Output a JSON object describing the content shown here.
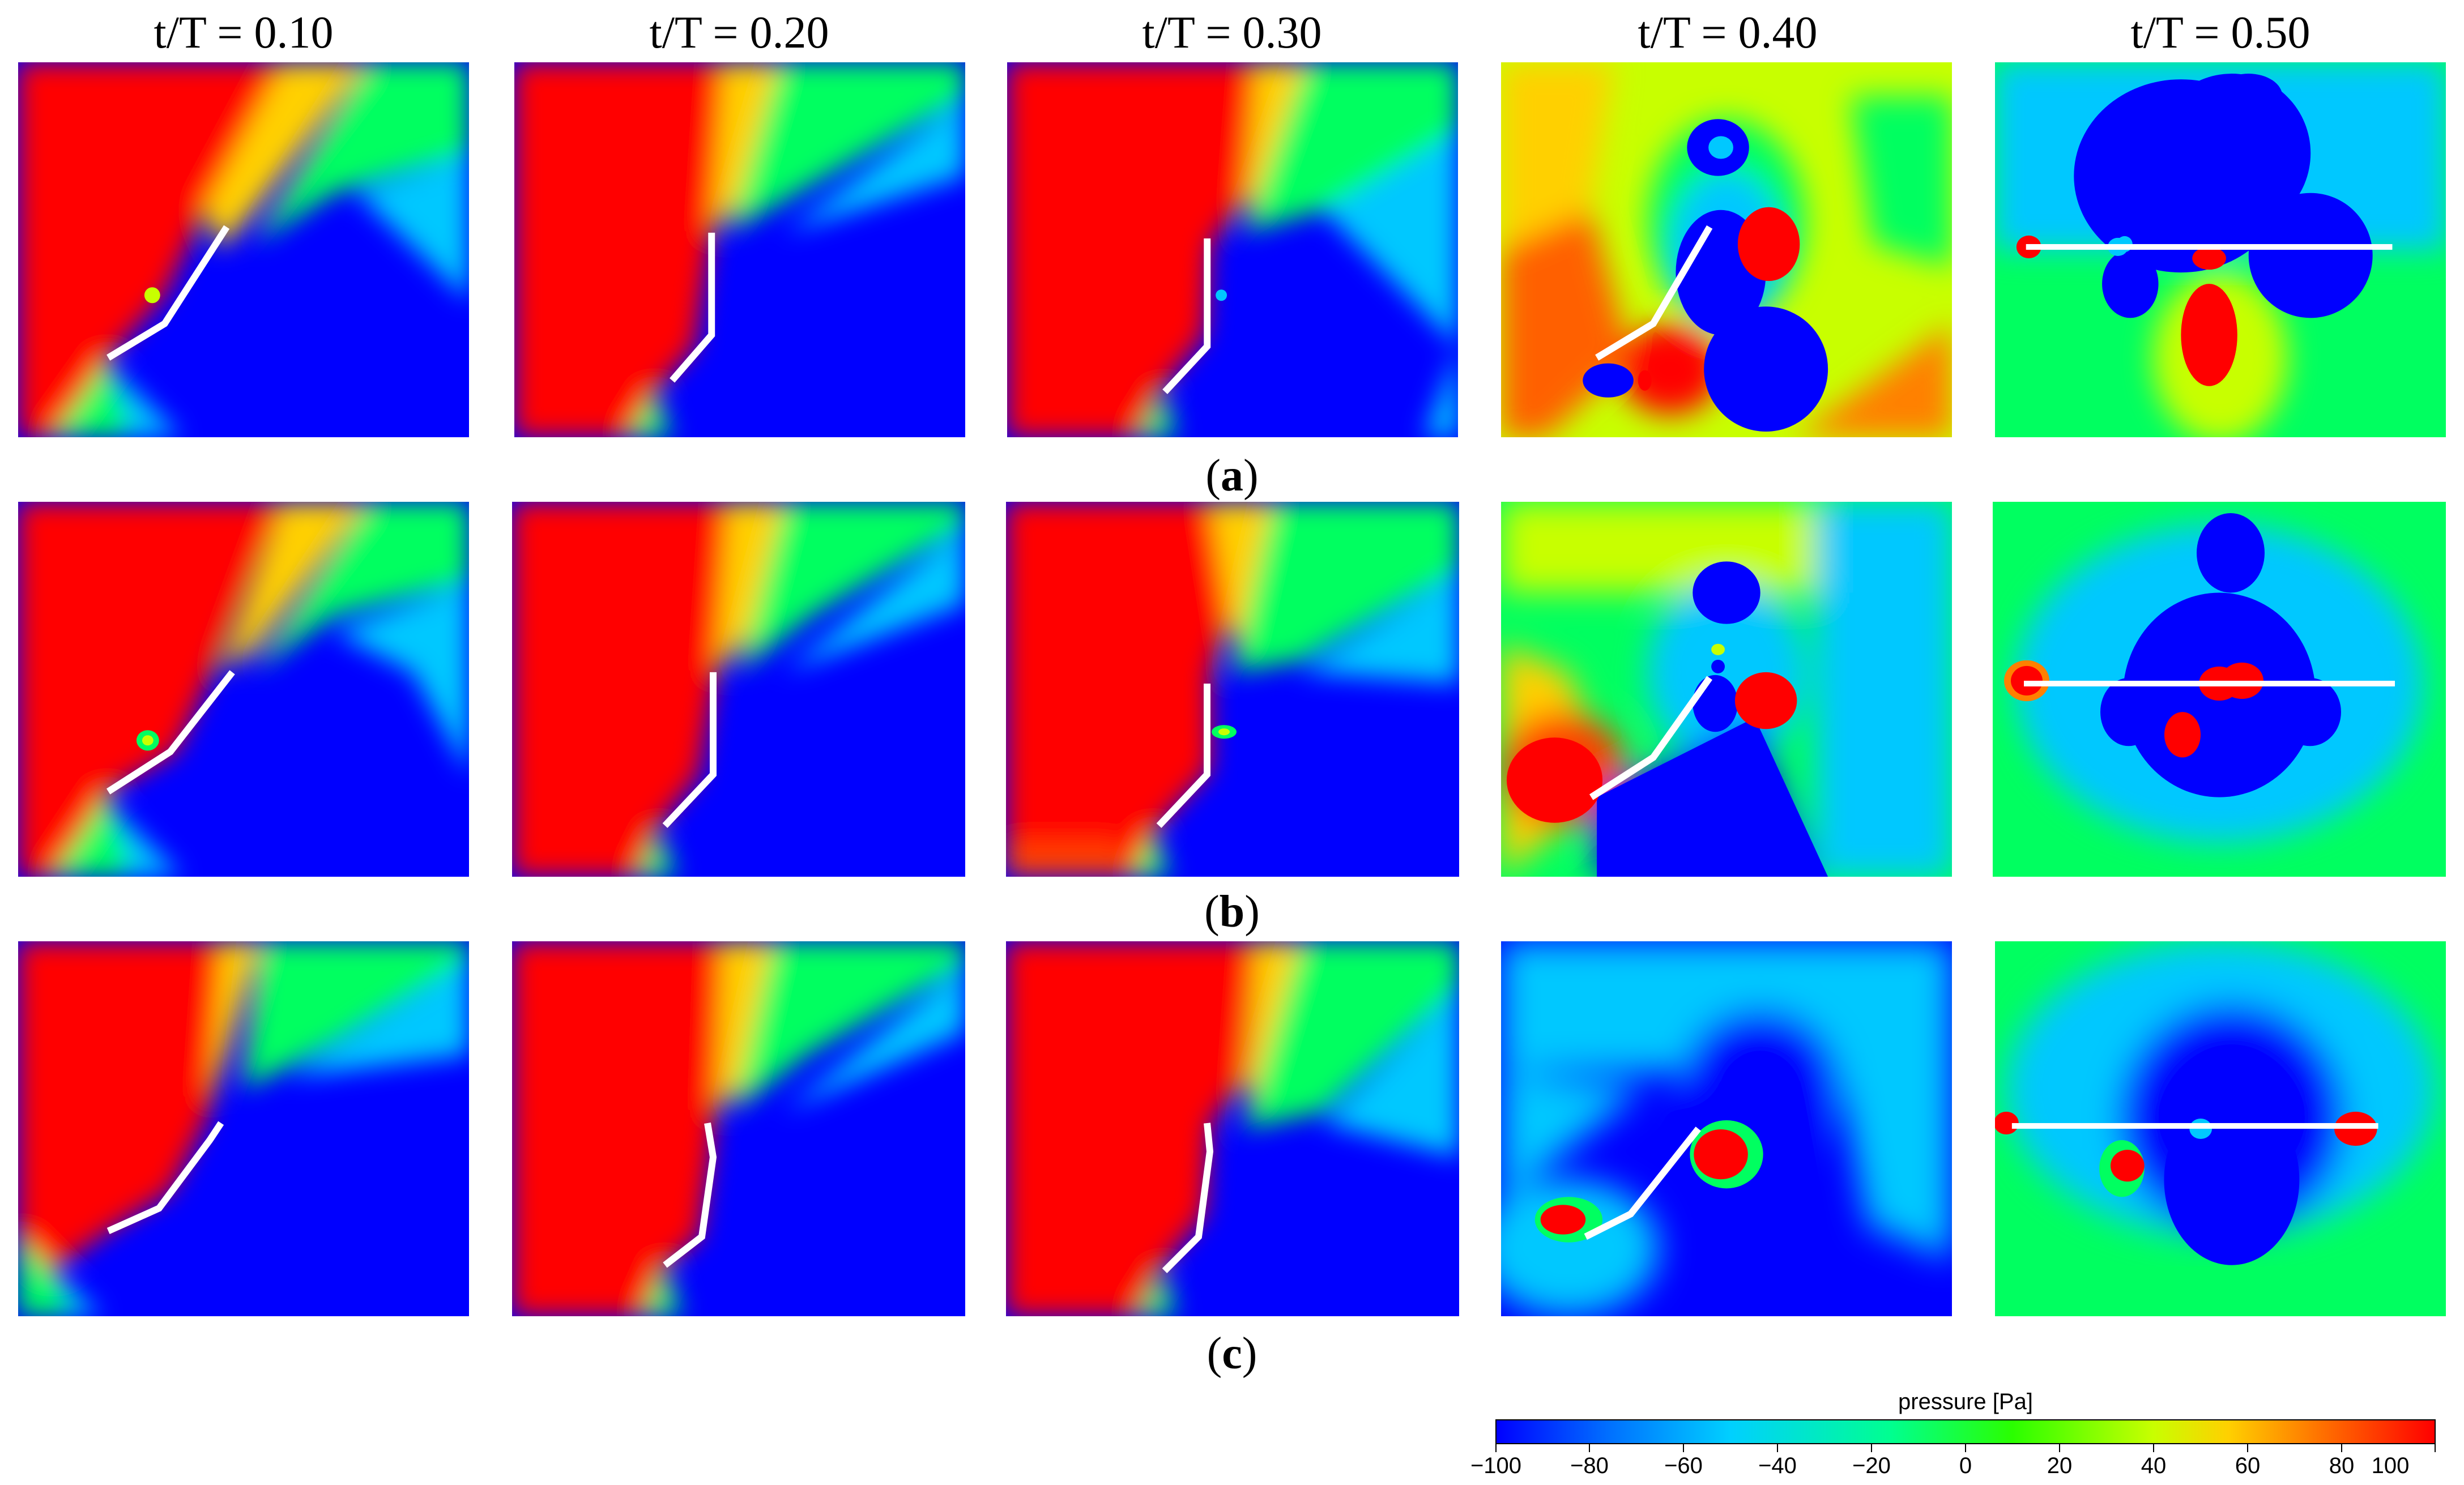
{
  "figure": {
    "column_titles": [
      "t/T = 0.10",
      "t/T = 0.20",
      "t/T = 0.30",
      "t/T = 0.40",
      "t/T = 0.50"
    ],
    "row_labels": [
      "a",
      "b",
      "c"
    ],
    "colorbar": {
      "title": "pressure [Pa]",
      "ticks": [
        "−100",
        "−80",
        "−60",
        "−40",
        "−20",
        "0",
        "20",
        "40",
        "60",
        "80",
        "100"
      ],
      "min": -100,
      "max": 100,
      "colors": [
        "#0000ff",
        "#00c8ff",
        "#00ff80",
        "#c8ff00",
        "#ffd000",
        "#ff0000"
      ]
    }
  }
}
